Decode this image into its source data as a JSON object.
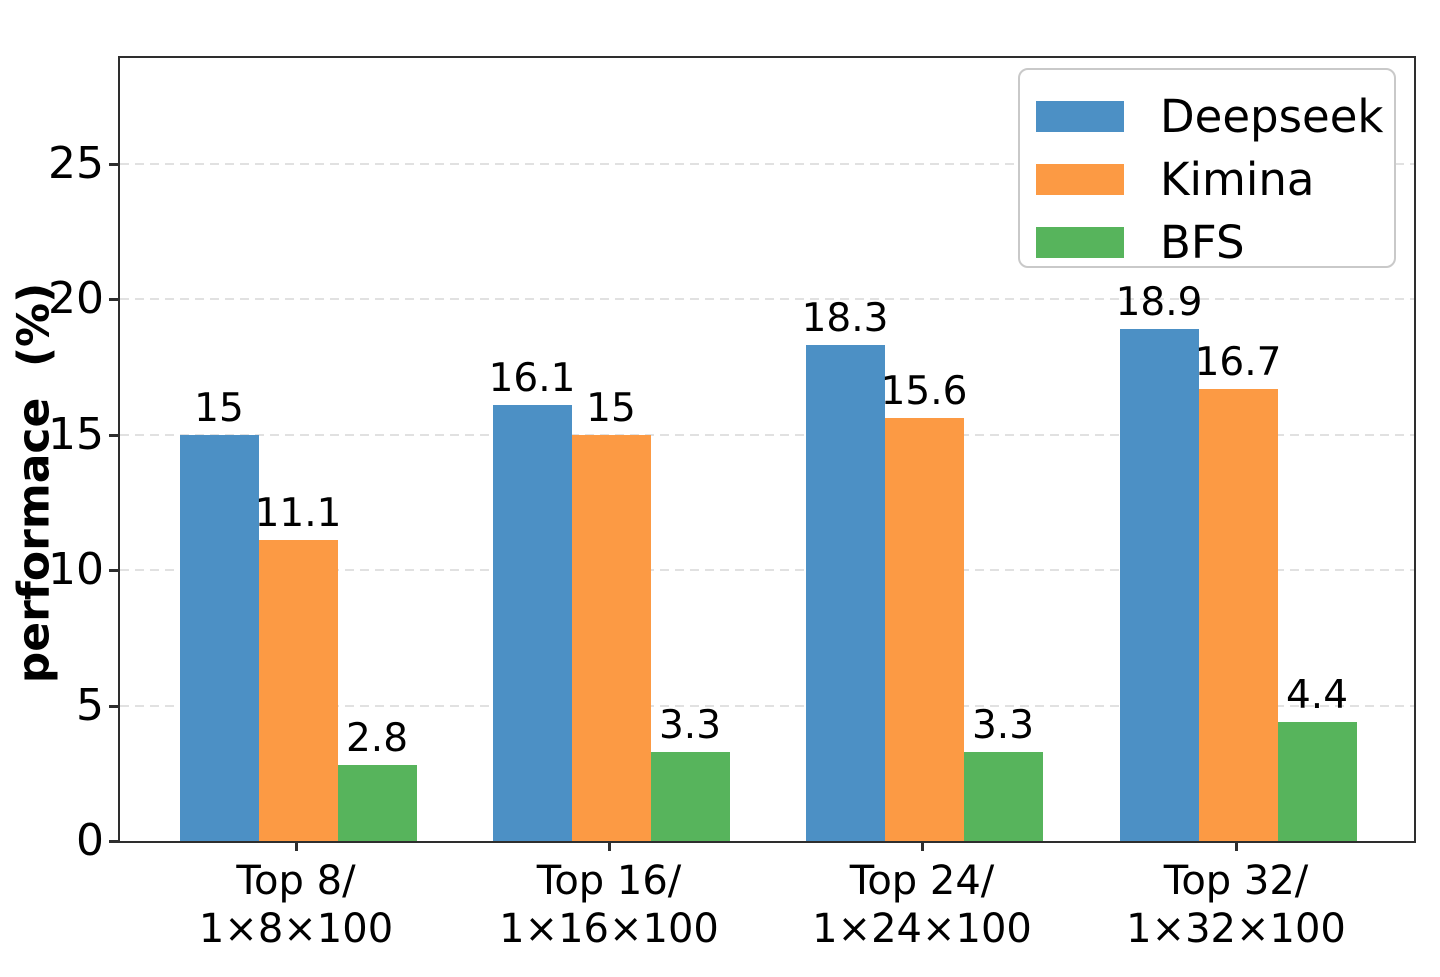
{
  "chart_data": {
    "type": "bar",
    "title": "",
    "xlabel": "",
    "ylabel": "performace  (%)",
    "categories": [
      "Top 8/\n1×8×100",
      "Top 16/\n1×16×100",
      "Top 24/\n1×24×100",
      "Top 32/\n1×32×100"
    ],
    "series": [
      {
        "name": "Deepseek",
        "color": "#4c90c5",
        "values": [
          15,
          16.1,
          18.3,
          18.9
        ],
        "labels": [
          "15",
          "16.1",
          "18.3",
          "18.9"
        ]
      },
      {
        "name": "Kimina",
        "color": "#fc9a44",
        "values": [
          11.1,
          15,
          15.6,
          16.7
        ],
        "labels": [
          "11.1",
          "15",
          "15.6",
          "16.7"
        ]
      },
      {
        "name": "BFS",
        "color": "#57b45c",
        "values": [
          2.8,
          3.3,
          3.3,
          4.4
        ],
        "labels": [
          "2.8",
          "3.3",
          "3.3",
          "4.4"
        ]
      }
    ],
    "yticks": [
      0,
      5,
      10,
      15,
      20,
      25
    ],
    "ylim": [
      0,
      28.9
    ],
    "grid": {
      "axis": "y",
      "style": "dashed",
      "color": "#e1e1e1"
    },
    "legend": {
      "position": "upper-right",
      "entries": [
        "Deepseek",
        "Kimina",
        "BFS"
      ]
    },
    "colors": {
      "spine": "#2e2e2e",
      "text": "#000000",
      "background": "#ffffff"
    }
  }
}
